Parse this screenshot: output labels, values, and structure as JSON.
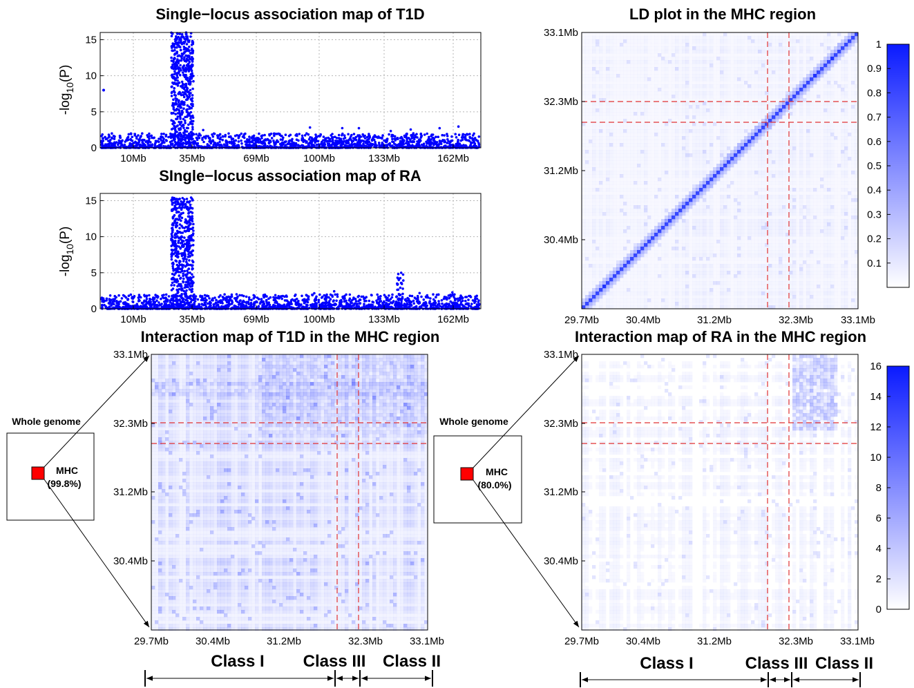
{
  "chart_data": [
    {
      "type": "scatter",
      "title": "Single−locus association map of T1D",
      "ylabel_base": "-log",
      "ylabel_sub": "10",
      "ylabel_tail": "(P)",
      "xtick_labels": [
        "10Mb",
        "35Mb",
        "69Mb",
        "100Mb",
        "133Mb",
        "162Mb"
      ],
      "yticks": [
        0,
        5,
        10,
        15
      ],
      "ylim": [
        0,
        16
      ],
      "grid": true,
      "color": "#0000ff",
      "peak": {
        "position_mb": 33,
        "max_y": 16
      },
      "outlier": {
        "position_mb": 1,
        "y": 8
      }
    },
    {
      "type": "scatter",
      "title": "SIngle−locus association map of RA",
      "ylabel_base": "-log",
      "ylabel_sub": "10",
      "ylabel_tail": "(P)",
      "xtick_labels": [
        "10Mb",
        "35Mb",
        "69Mb",
        "100Mb",
        "133Mb",
        "162Mb"
      ],
      "yticks": [
        0,
        5,
        10,
        15
      ],
      "ylim": [
        0,
        16
      ],
      "grid": true,
      "color": "#0000ff",
      "peak": {
        "position_mb": 33,
        "max_y": 15.5
      },
      "secondary_peak": {
        "position_mb": 136,
        "max_y": 5
      }
    },
    {
      "type": "heatmap",
      "title": "LD plot in the MHC region",
      "xtick_labels": [
        "29.7Mb",
        "30.4Mb",
        "31.2Mb",
        "32.3Mb",
        "33.1Mb"
      ],
      "ytick_labels": [
        "30.4Mb",
        "31.2Mb",
        "32.3Mb",
        "33.1Mb"
      ],
      "colorbar_ticks": [
        "0.1",
        "0.2",
        "0.3",
        "0.4",
        "0.5",
        "0.6",
        "0.7",
        "0.8",
        "0.9",
        "1"
      ],
      "colorbar_range": [
        0,
        1
      ],
      "color_low": "#ffffff",
      "color_high": "#0000ff",
      "diagonal": true
    },
    {
      "type": "heatmap",
      "title": "Interaction map of T1D in the MHC region",
      "xtick_labels": [
        "29.7Mb",
        "30.4Mb",
        "31.2Mb",
        "32.3Mb",
        "33.1Mb"
      ],
      "ytick_labels": [
        "30.4Mb",
        "31.2Mb",
        "32.3Mb",
        "33.1Mb"
      ],
      "inset": {
        "label": "Whole genome",
        "region": "MHC",
        "percent": "(99.8%)"
      },
      "classes": [
        "Class I",
        "Class III",
        "Class II"
      ]
    },
    {
      "type": "heatmap",
      "title": "Interaction map of RA in the MHC region",
      "xtick_labels": [
        "29.7Mb",
        "30.4Mb",
        "31.2Mb",
        "32.3Mb",
        "33.1Mb"
      ],
      "ytick_labels": [
        "30.4Mb",
        "31.2Mb",
        "32.3Mb",
        "33.1Mb"
      ],
      "colorbar_ticks": [
        "0",
        "2",
        "4",
        "6",
        "8",
        "10",
        "12",
        "14",
        "16"
      ],
      "colorbar_range": [
        0,
        16
      ],
      "inset": {
        "label": "Whole genome",
        "region": "MHC",
        "percent": "(80.0%)"
      },
      "classes": [
        "Class I",
        "Class III",
        "Class II"
      ]
    }
  ],
  "colors": {
    "points": "#0000ff",
    "highlight": "#ff0000",
    "boundary": "#e03030"
  }
}
